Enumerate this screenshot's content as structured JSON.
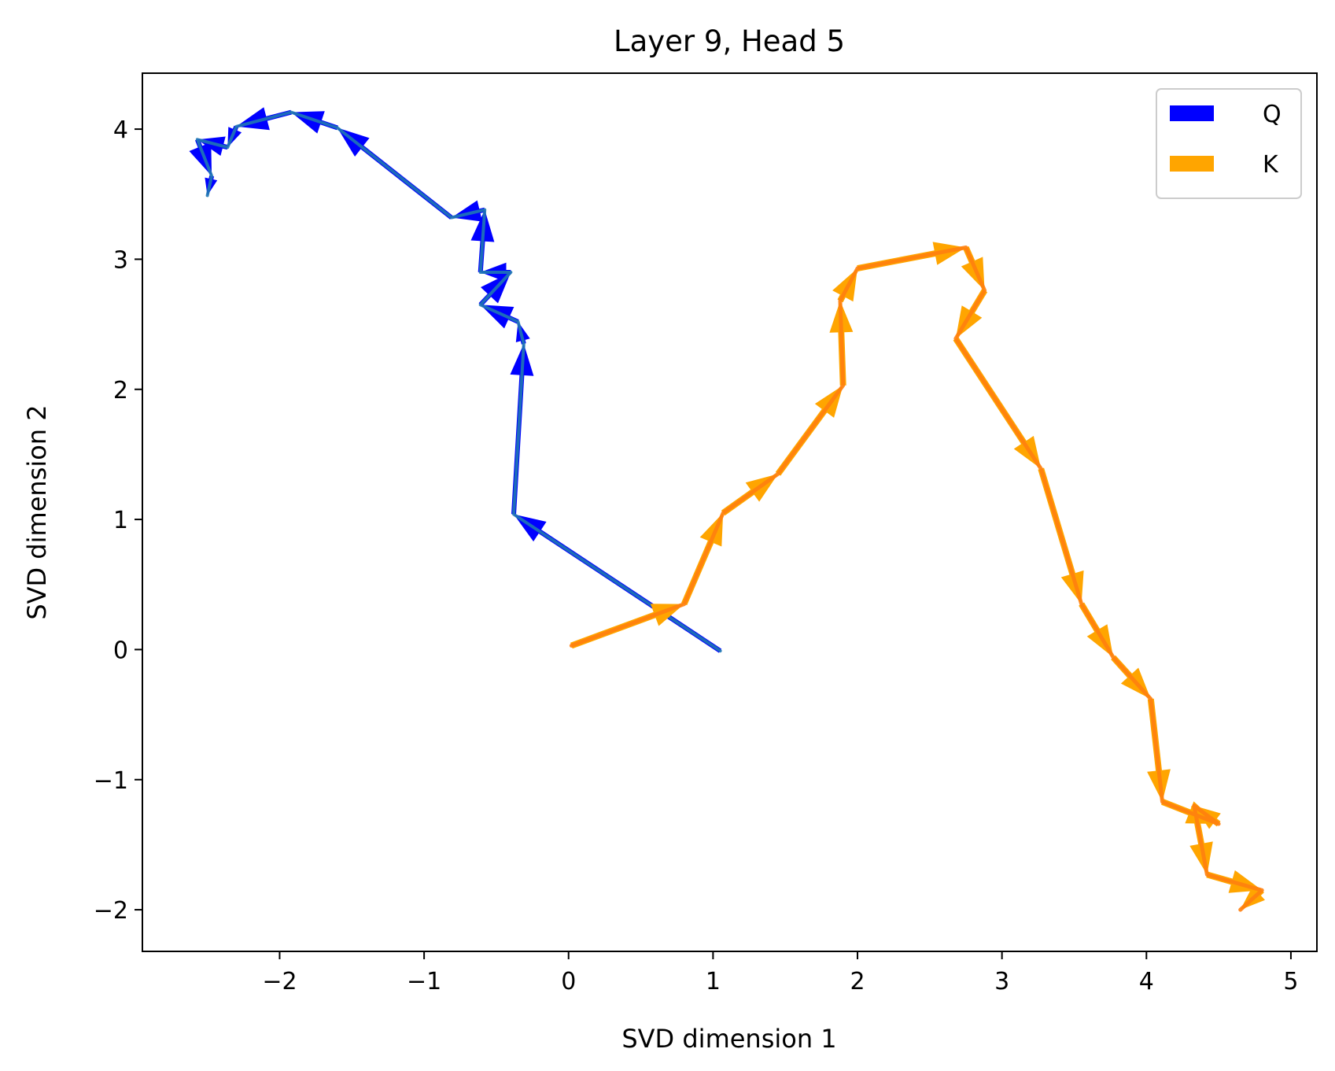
{
  "chart_data": {
    "type": "line",
    "title": "Layer 9, Head 5",
    "xlabel": "SVD dimension 1",
    "ylabel": "SVD dimension 2",
    "xlim": [
      -2.95,
      5.18
    ],
    "ylim": [
      -2.32,
      4.43
    ],
    "xticks": [
      -2,
      -1,
      0,
      1,
      2,
      3,
      4,
      5
    ],
    "yticks": [
      -2,
      -1,
      0,
      1,
      2,
      3,
      4
    ],
    "xtick_labels": [
      "−2",
      "−1",
      "0",
      "1",
      "2",
      "3",
      "4",
      "5"
    ],
    "ytick_labels": [
      "−2",
      "−1",
      "0",
      "1",
      "2",
      "3",
      "4"
    ],
    "grid": false,
    "legend": "top-right",
    "series": [
      {
        "name": "Q",
        "color": "#0000ff",
        "line_color": "#1f77b4",
        "x": [
          1.05,
          -0.38,
          -0.31,
          -0.35,
          -0.61,
          -0.4,
          -0.61,
          -0.58,
          -0.81,
          -1.6,
          -1.92,
          -2.3,
          -2.36,
          -2.57,
          -2.47,
          -2.5
        ],
        "y": [
          -0.01,
          1.04,
          2.35,
          2.52,
          2.65,
          2.9,
          2.9,
          3.38,
          3.32,
          4.01,
          4.13,
          4.02,
          3.86,
          3.92,
          3.64,
          3.49
        ]
      },
      {
        "name": "K",
        "color": "#ffa500",
        "line_color": "#ff7f0e",
        "x": [
          0.02,
          0.8,
          1.07,
          1.45,
          1.9,
          1.88,
          2.0,
          2.75,
          2.88,
          2.68,
          3.27,
          3.55,
          3.77,
          4.03,
          4.11,
          4.5,
          4.33,
          4.42,
          4.8,
          4.65
        ],
        "y": [
          0.03,
          0.35,
          1.05,
          1.35,
          2.03,
          2.68,
          2.93,
          3.09,
          2.76,
          2.39,
          1.39,
          0.35,
          -0.06,
          -0.38,
          -1.17,
          -1.34,
          -1.2,
          -1.73,
          -1.85,
          -2.0
        ]
      }
    ]
  }
}
